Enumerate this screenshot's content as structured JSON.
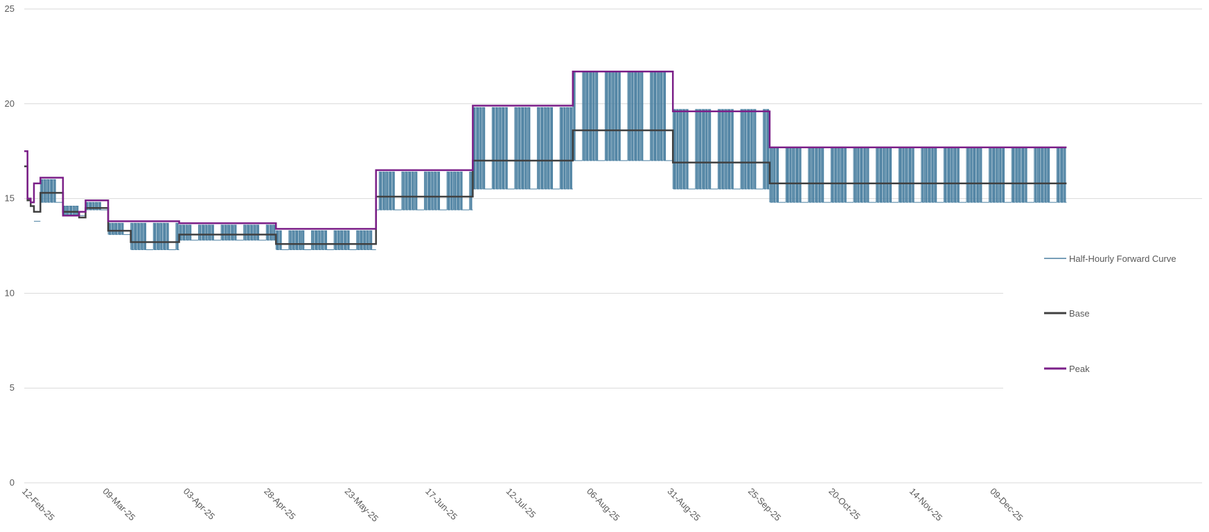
{
  "chart_data": {
    "type": "line",
    "title": "",
    "xlabel": "",
    "ylabel": "",
    "ylim": [
      0,
      25
    ],
    "yticks": [
      0,
      5,
      10,
      15,
      20,
      25
    ],
    "xlim": [
      "2025-02-12",
      "2026-02-12"
    ],
    "xticks": [
      "12-Feb-25",
      "09-Mar-25",
      "03-Apr-25",
      "28-Apr-25",
      "23-May-25",
      "17-Jun-25",
      "12-Jul-25",
      "06-Aug-25",
      "31-Aug-25",
      "25-Sep-25",
      "20-Oct-25",
      "14-Nov-25",
      "09-Dec-25"
    ],
    "grid": "horizontal",
    "legend_position": "right",
    "colors": {
      "half_hourly": "#4a7fa0",
      "base": "#404040",
      "peak": "#7b1f88",
      "grid": "#d9d9d9",
      "text": "#595959"
    },
    "series": [
      {
        "name": "Half-Hourly Forward Curve",
        "style": "weekly-band",
        "segments": [
          {
            "start": "2025-02-15",
            "end": "2025-02-16",
            "low": 13.8,
            "high": 15.1
          },
          {
            "start": "2025-02-17",
            "end": "2025-02-23",
            "low": 14.8,
            "high": 16.0
          },
          {
            "start": "2025-02-24",
            "end": "2025-03-02",
            "low": 14.1,
            "high": 14.6
          },
          {
            "start": "2025-03-03",
            "end": "2025-03-09",
            "low": 14.4,
            "high": 14.8
          },
          {
            "start": "2025-03-10",
            "end": "2025-03-16",
            "low": 13.1,
            "high": 13.7
          },
          {
            "start": "2025-03-17",
            "end": "2025-03-31",
            "low": 12.3,
            "high": 13.7
          },
          {
            "start": "2025-04-01",
            "end": "2025-04-30",
            "low": 12.8,
            "high": 13.6
          },
          {
            "start": "2025-05-01",
            "end": "2025-05-31",
            "low": 12.3,
            "high": 13.3
          },
          {
            "start": "2025-06-01",
            "end": "2025-06-30",
            "low": 14.4,
            "high": 16.4
          },
          {
            "start": "2025-07-01",
            "end": "2025-07-31",
            "low": 15.5,
            "high": 19.8
          },
          {
            "start": "2025-08-01",
            "end": "2025-08-31",
            "low": 17.0,
            "high": 21.7
          },
          {
            "start": "2025-09-01",
            "end": "2025-09-30",
            "low": 15.5,
            "high": 19.7
          },
          {
            "start": "2025-10-01",
            "end": "2025-12-31",
            "low": 14.8,
            "high": 17.7
          }
        ]
      },
      {
        "name": "Base",
        "style": "step",
        "segments": [
          {
            "start": "2025-02-12",
            "end": "2025-02-13",
            "value": 16.7
          },
          {
            "start": "2025-02-13",
            "end": "2025-02-14",
            "value": 14.9
          },
          {
            "start": "2025-02-14",
            "end": "2025-02-15",
            "value": 14.6
          },
          {
            "start": "2025-02-15",
            "end": "2025-02-17",
            "value": 14.3
          },
          {
            "start": "2025-02-17",
            "end": "2025-02-24",
            "value": 15.3
          },
          {
            "start": "2025-02-24",
            "end": "2025-03-01",
            "value": 14.3
          },
          {
            "start": "2025-03-01",
            "end": "2025-03-03",
            "value": 14.0
          },
          {
            "start": "2025-03-03",
            "end": "2025-03-10",
            "value": 14.5
          },
          {
            "start": "2025-03-10",
            "end": "2025-03-17",
            "value": 13.3
          },
          {
            "start": "2025-03-17",
            "end": "2025-04-01",
            "value": 12.7
          },
          {
            "start": "2025-04-01",
            "end": "2025-05-01",
            "value": 13.1
          },
          {
            "start": "2025-05-01",
            "end": "2025-06-01",
            "value": 12.6
          },
          {
            "start": "2025-06-01",
            "end": "2025-07-01",
            "value": 15.1
          },
          {
            "start": "2025-07-01",
            "end": "2025-08-01",
            "value": 17.0
          },
          {
            "start": "2025-08-01",
            "end": "2025-09-01",
            "value": 18.6
          },
          {
            "start": "2025-09-01",
            "end": "2025-10-01",
            "value": 16.9
          },
          {
            "start": "2025-10-01",
            "end": "2026-01-01",
            "value": 15.8
          }
        ]
      },
      {
        "name": "Peak",
        "style": "step",
        "segments": [
          {
            "start": "2025-02-12",
            "end": "2025-02-13",
            "value": 17.5
          },
          {
            "start": "2025-02-13",
            "end": "2025-02-14",
            "value": 15.0
          },
          {
            "start": "2025-02-14",
            "end": "2025-02-15",
            "value": 14.8
          },
          {
            "start": "2025-02-15",
            "end": "2025-02-17",
            "value": 15.8
          },
          {
            "start": "2025-02-17",
            "end": "2025-02-24",
            "value": 16.1
          },
          {
            "start": "2025-02-24",
            "end": "2025-03-01",
            "value": 14.1
          },
          {
            "start": "2025-03-01",
            "end": "2025-03-03",
            "value": 14.3
          },
          {
            "start": "2025-03-03",
            "end": "2025-03-10",
            "value": 14.9
          },
          {
            "start": "2025-03-10",
            "end": "2025-04-01",
            "value": 13.8
          },
          {
            "start": "2025-04-01",
            "end": "2025-05-01",
            "value": 13.7
          },
          {
            "start": "2025-05-01",
            "end": "2025-06-01",
            "value": 13.4
          },
          {
            "start": "2025-06-01",
            "end": "2025-07-01",
            "value": 16.5
          },
          {
            "start": "2025-07-01",
            "end": "2025-08-01",
            "value": 19.9
          },
          {
            "start": "2025-08-01",
            "end": "2025-09-01",
            "value": 21.7
          },
          {
            "start": "2025-09-01",
            "end": "2025-10-01",
            "value": 19.6
          },
          {
            "start": "2025-10-01",
            "end": "2026-01-01",
            "value": 17.7
          }
        ]
      }
    ]
  }
}
